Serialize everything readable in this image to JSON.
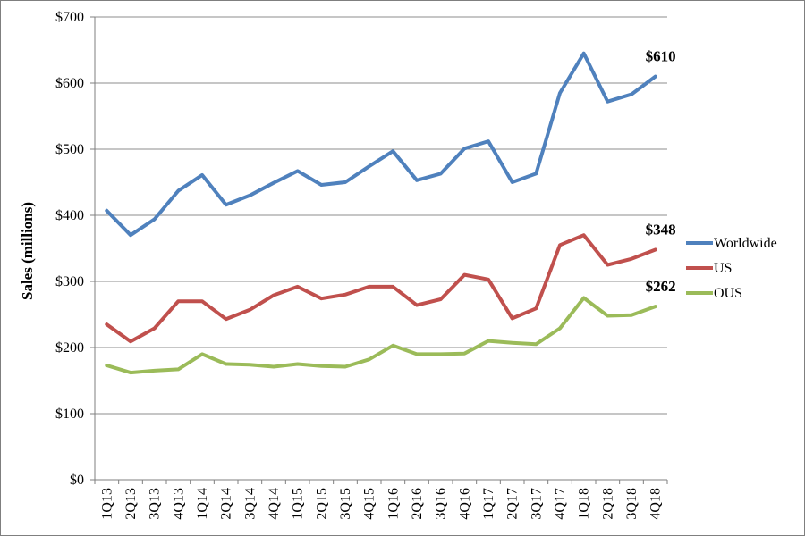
{
  "chart_data": {
    "type": "line",
    "title": "",
    "xlabel": "",
    "ylabel": "Sales (millions)",
    "ylim": [
      0,
      700
    ],
    "grid": true,
    "legend_position": "right",
    "y_ticks": [
      0,
      100,
      200,
      300,
      400,
      500,
      600,
      700
    ],
    "y_tick_labels": [
      "$0",
      "$100",
      "$200",
      "$300",
      "$400",
      "$500",
      "$600",
      "$700"
    ],
    "categories": [
      "1Q13",
      "2Q13",
      "3Q13",
      "4Q13",
      "1Q14",
      "2Q14",
      "3Q14",
      "4Q14",
      "1Q15",
      "2Q15",
      "3Q15",
      "4Q15",
      "1Q16",
      "2Q16",
      "3Q16",
      "4Q16",
      "1Q17",
      "2Q17",
      "3Q17",
      "4Q17",
      "1Q18",
      "2Q18",
      "3Q18",
      "4Q18"
    ],
    "series": [
      {
        "name": "Worldwide",
        "color": "#4f81bd",
        "values": [
          407,
          370,
          394,
          437,
          461,
          416,
          430,
          449,
          467,
          446,
          450,
          474,
          497,
          453,
          463,
          501,
          512,
          450,
          463,
          585,
          645,
          572,
          583,
          610
        ],
        "end_label": "$610"
      },
      {
        "name": "US",
        "color": "#c0504d",
        "values": [
          235,
          209,
          229,
          270,
          270,
          243,
          257,
          279,
          292,
          274,
          280,
          292,
          292,
          264,
          273,
          310,
          303,
          244,
          259,
          355,
          370,
          325,
          334,
          348
        ],
        "end_label": "$348"
      },
      {
        "name": "OUS",
        "color": "#9bbb59",
        "values": [
          173,
          162,
          165,
          167,
          190,
          175,
          174,
          171,
          175,
          172,
          171,
          182,
          203,
          190,
          190,
          191,
          210,
          207,
          205,
          229,
          275,
          248,
          249,
          262
        ],
        "end_label": "$262"
      }
    ]
  }
}
